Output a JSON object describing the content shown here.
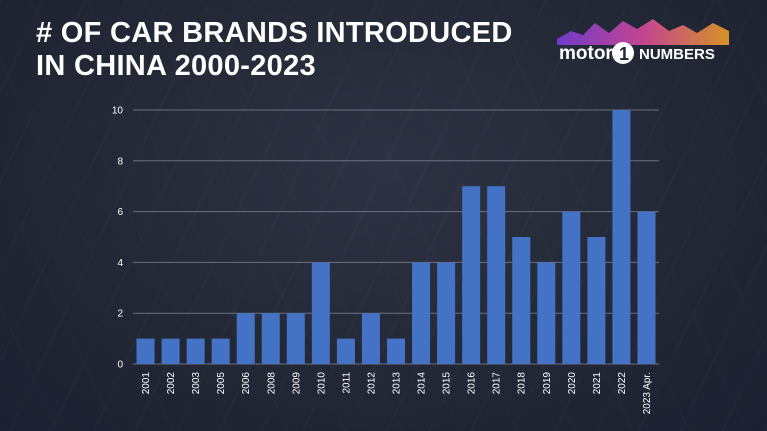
{
  "header": {
    "title_line1": "# OF CAR BRANDS INTRODUCED",
    "title_line2": "IN CHINA 2000-2023"
  },
  "logo": {
    "text_motor": "motor",
    "text_one": "1",
    "text_numbers": "NUMBERS"
  },
  "colors": {
    "bar": "#4472c4",
    "gridline": "#6b7080",
    "text": "#ffffff",
    "logo_gradient": [
      "#7b3fe4",
      "#e04aa0",
      "#f5a623"
    ]
  },
  "chart_data": {
    "type": "bar",
    "categories": [
      "2001",
      "2002",
      "2003",
      "2005",
      "2006",
      "2008",
      "2009",
      "2010",
      "2011",
      "2012",
      "2013",
      "2014",
      "2015",
      "2016",
      "2017",
      "2018",
      "2019",
      "2020",
      "2021",
      "2022",
      "2023 Apr."
    ],
    "values": [
      1,
      1,
      1,
      1,
      2,
      2,
      2,
      4,
      1,
      2,
      1,
      4,
      4,
      7,
      7,
      5,
      4,
      6,
      5,
      10,
      6
    ],
    "yticks": [
      0,
      2,
      4,
      6,
      8,
      10
    ],
    "ylim": [
      0,
      10
    ],
    "grid": true,
    "title": "# OF CAR BRANDS INTRODUCED IN CHINA 2000-2023",
    "xlabel": "",
    "ylabel": ""
  }
}
